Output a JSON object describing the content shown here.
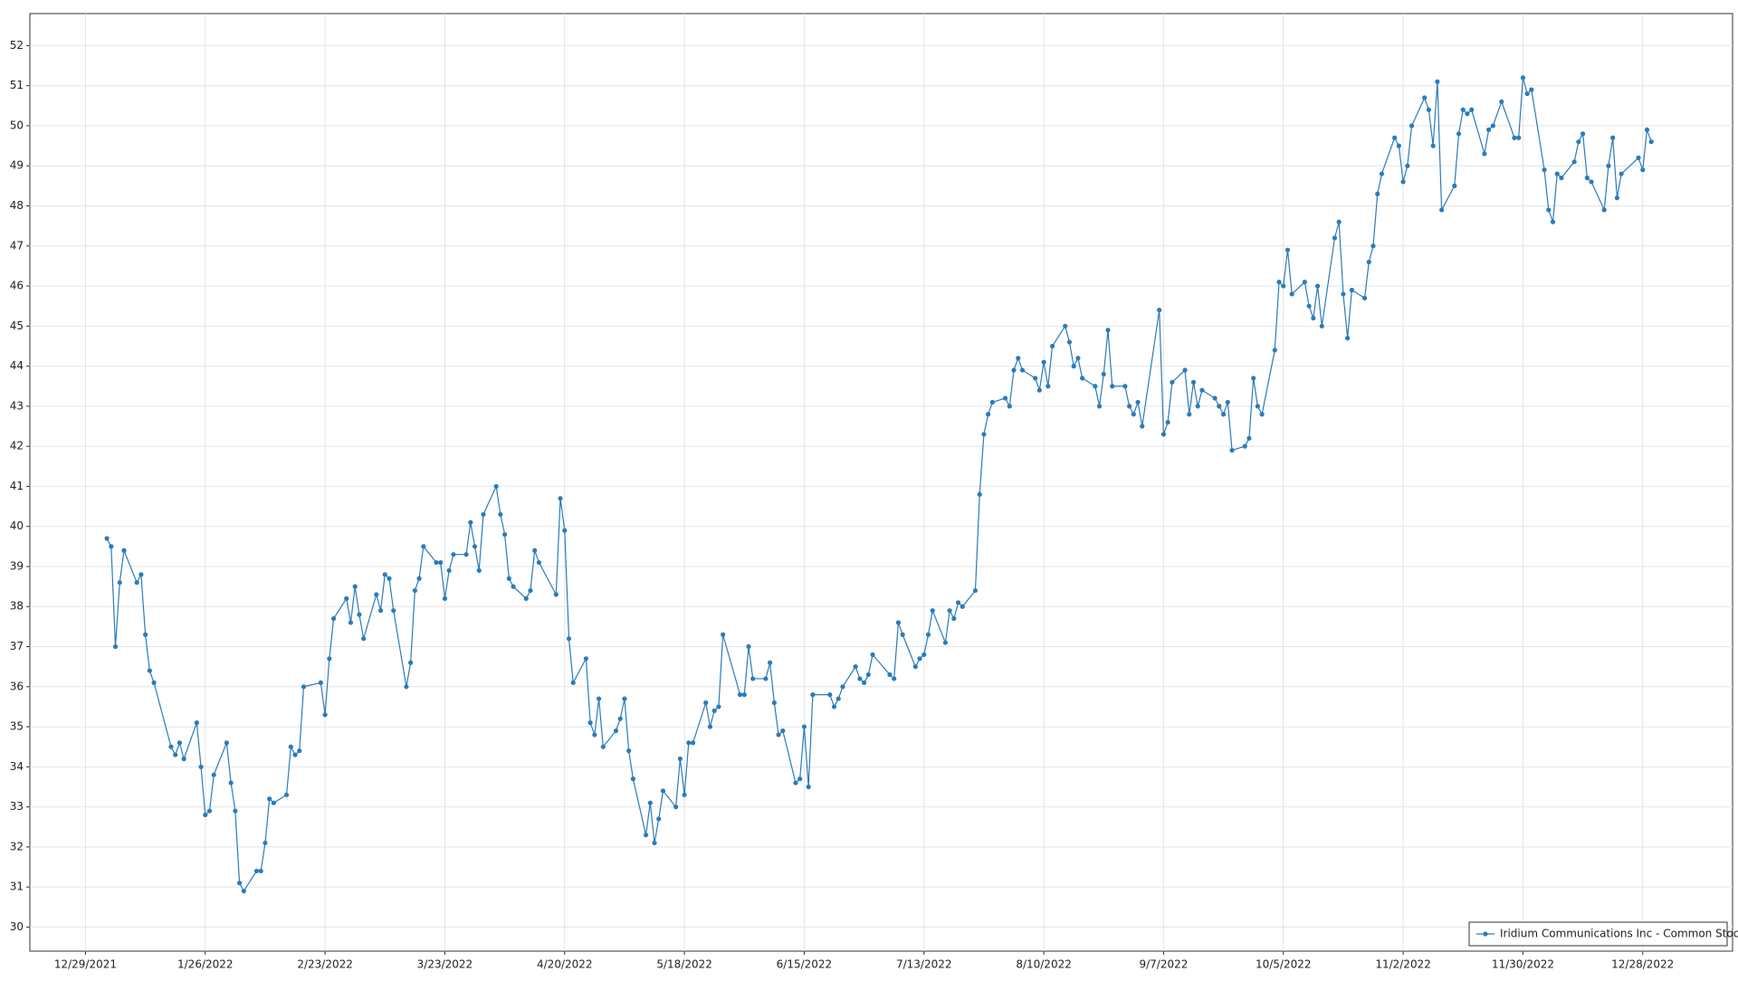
{
  "chart_data": {
    "type": "line",
    "x": [
      "1/3/2022",
      "1/4/2022",
      "1/5/2022",
      "1/6/2022",
      "1/7/2022",
      "1/10/2022",
      "1/11/2022",
      "1/12/2022",
      "1/13/2022",
      "1/14/2022",
      "1/18/2022",
      "1/19/2022",
      "1/20/2022",
      "1/21/2022",
      "1/24/2022",
      "1/25/2022",
      "1/26/2022",
      "1/27/2022",
      "1/28/2022",
      "1/31/2022",
      "2/1/2022",
      "2/2/2022",
      "2/3/2022",
      "2/4/2022",
      "2/7/2022",
      "2/8/2022",
      "2/9/2022",
      "2/10/2022",
      "2/11/2022",
      "2/14/2022",
      "2/15/2022",
      "2/16/2022",
      "2/17/2022",
      "2/18/2022",
      "2/22/2022",
      "2/23/2022",
      "2/24/2022",
      "2/25/2022",
      "2/28/2022",
      "3/1/2022",
      "3/2/2022",
      "3/3/2022",
      "3/4/2022",
      "3/7/2022",
      "3/8/2022",
      "3/9/2022",
      "3/10/2022",
      "3/11/2022",
      "3/14/2022",
      "3/15/2022",
      "3/16/2022",
      "3/17/2022",
      "3/18/2022",
      "3/21/2022",
      "3/22/2022",
      "3/23/2022",
      "3/24/2022",
      "3/25/2022",
      "3/28/2022",
      "3/29/2022",
      "3/30/2022",
      "3/31/2022",
      "4/1/2022",
      "4/4/2022",
      "4/5/2022",
      "4/6/2022",
      "4/7/2022",
      "4/8/2022",
      "4/11/2022",
      "4/12/2022",
      "4/13/2022",
      "4/14/2022",
      "4/18/2022",
      "4/19/2022",
      "4/20/2022",
      "4/21/2022",
      "4/22/2022",
      "4/25/2022",
      "4/26/2022",
      "4/27/2022",
      "4/28/2022",
      "4/29/2022",
      "5/2/2022",
      "5/3/2022",
      "5/4/2022",
      "5/5/2022",
      "5/6/2022",
      "5/9/2022",
      "5/10/2022",
      "5/11/2022",
      "5/12/2022",
      "5/13/2022",
      "5/16/2022",
      "5/17/2022",
      "5/18/2022",
      "5/19/2022",
      "5/20/2022",
      "5/23/2022",
      "5/24/2022",
      "5/25/2022",
      "5/26/2022",
      "5/27/2022",
      "5/31/2022",
      "6/1/2022",
      "6/2/2022",
      "6/3/2022",
      "6/6/2022",
      "6/7/2022",
      "6/8/2022",
      "6/9/2022",
      "6/10/2022",
      "6/13/2022",
      "6/14/2022",
      "6/15/2022",
      "6/16/2022",
      "6/17/2022",
      "6/21/2022",
      "6/22/2022",
      "6/23/2022",
      "6/24/2022",
      "6/27/2022",
      "6/28/2022",
      "6/29/2022",
      "6/30/2022",
      "7/1/2022",
      "7/5/2022",
      "7/6/2022",
      "7/7/2022",
      "7/8/2022",
      "7/11/2022",
      "7/12/2022",
      "7/13/2022",
      "7/14/2022",
      "7/15/2022",
      "7/18/2022",
      "7/19/2022",
      "7/20/2022",
      "7/21/2022",
      "7/22/2022",
      "7/25/2022",
      "7/26/2022",
      "7/27/2022",
      "7/28/2022",
      "7/29/2022",
      "8/1/2022",
      "8/2/2022",
      "8/3/2022",
      "8/4/2022",
      "8/5/2022",
      "8/8/2022",
      "8/9/2022",
      "8/10/2022",
      "8/11/2022",
      "8/12/2022",
      "8/15/2022",
      "8/16/2022",
      "8/17/2022",
      "8/18/2022",
      "8/19/2022",
      "8/22/2022",
      "8/23/2022",
      "8/24/2022",
      "8/25/2022",
      "8/26/2022",
      "8/29/2022",
      "8/30/2022",
      "8/31/2022",
      "9/1/2022",
      "9/2/2022",
      "9/6/2022",
      "9/7/2022",
      "9/8/2022",
      "9/9/2022",
      "9/12/2022",
      "9/13/2022",
      "9/14/2022",
      "9/15/2022",
      "9/16/2022",
      "9/19/2022",
      "9/20/2022",
      "9/21/2022",
      "9/22/2022",
      "9/23/2022",
      "9/26/2022",
      "9/27/2022",
      "9/28/2022",
      "9/29/2022",
      "9/30/2022",
      "10/3/2022",
      "10/4/2022",
      "10/5/2022",
      "10/6/2022",
      "10/7/2022",
      "10/10/2022",
      "10/11/2022",
      "10/12/2022",
      "10/13/2022",
      "10/14/2022",
      "10/17/2022",
      "10/18/2022",
      "10/19/2022",
      "10/20/2022",
      "10/21/2022",
      "10/24/2022",
      "10/25/2022",
      "10/26/2022",
      "10/27/2022",
      "10/28/2022",
      "10/31/2022",
      "11/1/2022",
      "11/2/2022",
      "11/3/2022",
      "11/4/2022",
      "11/7/2022",
      "11/8/2022",
      "11/9/2022",
      "11/10/2022",
      "11/11/2022",
      "11/14/2022",
      "11/15/2022",
      "11/16/2022",
      "11/17/2022",
      "11/18/2022",
      "11/21/2022",
      "11/22/2022",
      "11/23/2022",
      "11/25/2022",
      "11/28/2022",
      "11/29/2022",
      "11/30/2022",
      "12/1/2022",
      "12/2/2022",
      "12/5/2022",
      "12/6/2022",
      "12/7/2022",
      "12/8/2022",
      "12/9/2022",
      "12/12/2022",
      "12/13/2022",
      "12/14/2022",
      "12/15/2022",
      "12/16/2022",
      "12/19/2022",
      "12/20/2022",
      "12/21/2022",
      "12/22/2022",
      "12/23/2022",
      "12/27/2022",
      "12/28/2022",
      "12/29/2022",
      "12/30/2022"
    ],
    "series": [
      {
        "name": "Iridium Communications Inc - Common Stock",
        "color": "#2b7bba",
        "values": [
          39.7,
          39.5,
          37.0,
          38.6,
          39.4,
          38.6,
          38.8,
          37.3,
          36.4,
          36.1,
          34.5,
          34.3,
          34.6,
          34.2,
          35.1,
          34.0,
          32.8,
          32.9,
          33.8,
          34.6,
          33.6,
          32.9,
          31.1,
          30.9,
          31.4,
          31.4,
          32.1,
          33.2,
          33.1,
          33.3,
          34.5,
          34.3,
          34.4,
          36.0,
          36.1,
          35.3,
          36.7,
          37.7,
          38.2,
          37.6,
          38.5,
          37.8,
          37.2,
          38.3,
          37.9,
          38.8,
          38.7,
          37.9,
          36.0,
          36.6,
          38.4,
          38.7,
          39.5,
          39.1,
          39.1,
          38.2,
          38.9,
          39.3,
          39.3,
          40.1,
          39.5,
          38.9,
          40.3,
          41.0,
          40.3,
          39.8,
          38.7,
          38.5,
          38.2,
          38.4,
          39.4,
          39.1,
          38.3,
          40.7,
          39.9,
          37.2,
          36.1,
          36.7,
          35.1,
          34.8,
          35.7,
          34.5,
          34.9,
          35.2,
          35.7,
          34.4,
          33.7,
          32.3,
          33.1,
          32.1,
          32.7,
          33.4,
          33.0,
          34.2,
          33.3,
          34.6,
          34.6,
          35.6,
          35.0,
          35.4,
          35.5,
          37.3,
          35.8,
          35.8,
          37.0,
          36.2,
          36.2,
          36.6,
          35.6,
          34.8,
          34.9,
          33.6,
          33.7,
          35.0,
          33.5,
          35.8,
          35.8,
          35.5,
          35.7,
          36.0,
          36.5,
          36.2,
          36.1,
          36.3,
          36.8,
          36.3,
          36.2,
          37.6,
          37.3,
          36.5,
          36.7,
          36.8,
          37.3,
          37.9,
          37.1,
          37.9,
          37.7,
          38.1,
          38.0,
          38.4,
          40.8,
          42.3,
          42.8,
          43.1,
          43.2,
          43.0,
          43.9,
          44.2,
          43.9,
          43.7,
          43.4,
          44.1,
          43.5,
          44.5,
          45.0,
          44.6,
          44.0,
          44.2,
          43.7,
          43.5,
          43.0,
          43.8,
          44.9,
          43.5,
          43.5,
          43.0,
          42.8,
          43.1,
          42.5,
          45.4,
          42.3,
          42.6,
          43.6,
          43.9,
          42.8,
          43.6,
          43.0,
          43.4,
          43.2,
          43.0,
          42.8,
          43.1,
          41.9,
          42.0,
          42.2,
          43.7,
          43.0,
          42.8,
          44.4,
          46.1,
          46.0,
          46.9,
          45.8,
          46.1,
          45.5,
          45.2,
          46.0,
          45.0,
          47.2,
          47.6,
          45.8,
          44.7,
          45.9,
          45.7,
          46.6,
          47.0,
          48.3,
          48.8,
          49.7,
          49.5,
          48.6,
          49.0,
          50.0,
          50.7,
          50.4,
          49.5,
          51.1,
          47.9,
          48.5,
          49.8,
          50.4,
          50.3,
          50.4,
          49.3,
          49.9,
          50.0,
          50.6,
          49.7,
          49.7,
          51.2,
          50.8,
          50.9,
          48.9,
          47.9,
          47.6,
          48.8,
          48.7,
          49.1,
          49.6,
          49.8,
          48.7,
          48.6,
          47.9,
          49.0,
          49.7,
          48.2,
          48.8,
          49.2,
          48.9,
          49.9,
          49.6
        ]
      }
    ],
    "xlim": [
      "12/16/2021",
      "1/18/2023"
    ],
    "xticks": [
      "12/29/2021",
      "1/26/2022",
      "2/23/2022",
      "3/23/2022",
      "4/20/2022",
      "5/18/2022",
      "6/15/2022",
      "7/13/2022",
      "8/10/2022",
      "9/7/2022",
      "10/5/2022",
      "11/2/2022",
      "11/30/2022",
      "12/28/2022"
    ],
    "ylim": [
      29.4,
      52.8
    ],
    "yticks": [
      30,
      31,
      32,
      33,
      34,
      35,
      36,
      37,
      38,
      39,
      40,
      41,
      42,
      43,
      44,
      45,
      46,
      47,
      48,
      49,
      50,
      51,
      52
    ],
    "grid": true,
    "legend": "lower right"
  }
}
